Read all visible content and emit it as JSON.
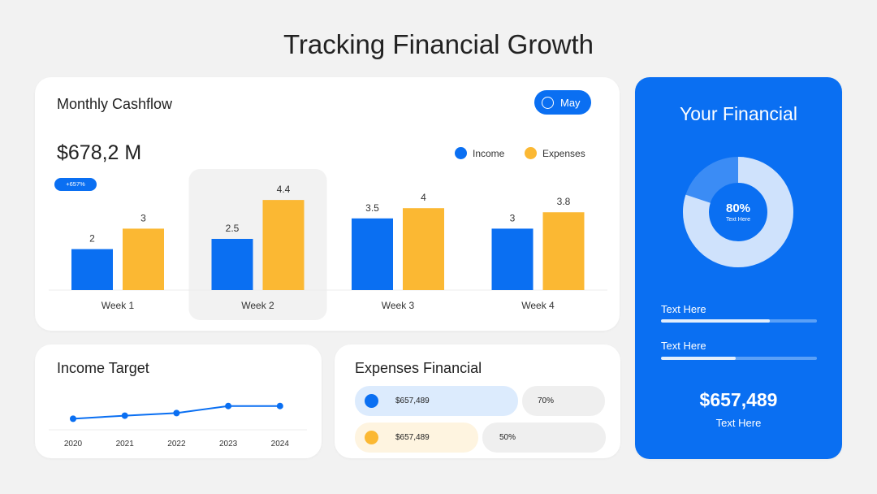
{
  "page_title": "Tracking Financial Growth",
  "cashflow": {
    "title": "Monthly Cashflow",
    "month_button": "May",
    "total": "$678,2 M",
    "growth_badge": "+657%",
    "legend": [
      {
        "label": "Income",
        "color": "#0a6ff2"
      },
      {
        "label": "Expenses",
        "color": "#fbb833"
      }
    ],
    "highlighted_category": "Week 2"
  },
  "income_target": {
    "title": "Income Target"
  },
  "expenses_financial": {
    "title": "Expenses Financial",
    "rows": [
      {
        "amount": "$657,489",
        "percent": "70%",
        "color": "#0a6ff2",
        "bg": "#dcebfd"
      },
      {
        "amount": "$657,489",
        "percent": "50%",
        "color": "#fbb833",
        "bg": "#fef4e0"
      }
    ]
  },
  "your_financial": {
    "title": "Your Financial",
    "donut_percent": "80%",
    "donut_value": 80,
    "donut_label": "Text Here",
    "progress": [
      {
        "label": "Text Here",
        "value": 70
      },
      {
        "label": "Text Here",
        "value": 48
      }
    ],
    "amount": "$657,489",
    "amount_label": "Text Here"
  },
  "chart_data": [
    {
      "type": "bar",
      "categories": [
        "Week 1",
        "Week 2",
        "Week 3",
        "Week 4"
      ],
      "series": [
        {
          "name": "Income",
          "values": [
            2,
            2.5,
            3.5,
            3
          ],
          "color": "#0a6ff2"
        },
        {
          "name": "Expenses",
          "values": [
            3,
            4.4,
            4,
            3.8
          ],
          "color": "#fbb833"
        }
      ],
      "title": "Monthly Cashflow",
      "ylim": [
        0,
        5
      ],
      "grid": false,
      "legend": "top-right"
    },
    {
      "type": "line",
      "x": [
        "2020",
        "2021",
        "2022",
        "2023",
        "2024"
      ],
      "series": [
        {
          "values": [
            0.3,
            1.0,
            1.6,
            3.2,
            3.2
          ],
          "color": "#0a6ff2"
        }
      ],
      "title": "Income Target",
      "ylim": [
        0,
        4
      ],
      "grid": false
    }
  ]
}
